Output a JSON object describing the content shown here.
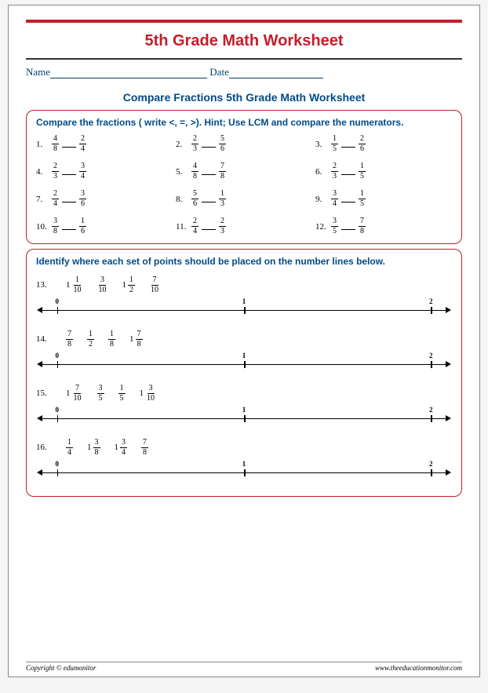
{
  "title": "5th Grade Math Worksheet",
  "name_label": "Name",
  "date_label": "Date",
  "subtitle": "Compare Fractions 5th Grade Math Worksheet",
  "section1": {
    "instructions": "Compare the fractions ( write <, =, >). Hint;  Use LCM and compare the numerators.",
    "problems": [
      {
        "n": "1.",
        "a": {
          "n": "4",
          "d": "8"
        },
        "b": {
          "n": "2",
          "d": "4"
        }
      },
      {
        "n": "2.",
        "a": {
          "n": "2",
          "d": "3"
        },
        "b": {
          "n": "5",
          "d": "6"
        }
      },
      {
        "n": "3.",
        "a": {
          "n": "1",
          "d": "5"
        },
        "b": {
          "n": "2",
          "d": "6"
        }
      },
      {
        "n": "4.",
        "a": {
          "n": "2",
          "d": "3"
        },
        "b": {
          "n": "3",
          "d": "4"
        }
      },
      {
        "n": "5.",
        "a": {
          "n": "4",
          "d": "8"
        },
        "b": {
          "n": "7",
          "d": "8"
        }
      },
      {
        "n": "6.",
        "a": {
          "n": "2",
          "d": "3"
        },
        "b": {
          "n": "1",
          "d": "5"
        }
      },
      {
        "n": "7.",
        "a": {
          "n": "2",
          "d": "4"
        },
        "b": {
          "n": "3",
          "d": "6"
        }
      },
      {
        "n": "8.",
        "a": {
          "n": "5",
          "d": "6"
        },
        "b": {
          "n": "1",
          "d": "3"
        }
      },
      {
        "n": "9.",
        "a": {
          "n": "3",
          "d": "4"
        },
        "b": {
          "n": "1",
          "d": "5"
        }
      },
      {
        "n": "10.",
        "a": {
          "n": "3",
          "d": "8"
        },
        "b": {
          "n": "1",
          "d": "6"
        }
      },
      {
        "n": "11.",
        "a": {
          "n": "2",
          "d": "4"
        },
        "b": {
          "n": "2",
          "d": "3"
        }
      },
      {
        "n": "12.",
        "a": {
          "n": "3",
          "d": "5"
        },
        "b": {
          "n": "7",
          "d": "8"
        }
      }
    ]
  },
  "section2": {
    "instructions": "Identify where each set of points should be placed on the number lines below.",
    "problems": [
      {
        "n": "13.",
        "items": [
          {
            "w": "1",
            "n": "1",
            "d": "10"
          },
          {
            "n": "3",
            "d": "10"
          },
          {
            "w": "1",
            "n": "1",
            "d": "2"
          },
          {
            "n": "7",
            "d": "10"
          }
        ]
      },
      {
        "n": "14.",
        "items": [
          {
            "n": "7",
            "d": "8"
          },
          {
            "n": "1",
            "d": "2"
          },
          {
            "n": "1",
            "d": "8"
          },
          {
            "w": "1",
            "n": "7",
            "d": "8"
          }
        ]
      },
      {
        "n": "15.",
        "items": [
          {
            "w": "1",
            "n": "7",
            "d": "10"
          },
          {
            "n": "3",
            "d": "5"
          },
          {
            "n": "1",
            "d": "5"
          },
          {
            "w": "1",
            "n": "3",
            "d": "10"
          }
        ]
      },
      {
        "n": "16.",
        "items": [
          {
            "n": "1",
            "d": "4"
          },
          {
            "w": "1",
            "n": "3",
            "d": "8"
          },
          {
            "w": "1",
            "n": "3",
            "d": "4"
          },
          {
            "n": "7",
            "d": "8"
          }
        ]
      }
    ],
    "ticks": [
      "0",
      "1",
      "2"
    ]
  },
  "footer": {
    "left": "Copyright © edumonitor",
    "right": "www.theeducationmonitor.com"
  },
  "colors": {
    "red": "#c41e2a",
    "blue": "#004b87"
  }
}
